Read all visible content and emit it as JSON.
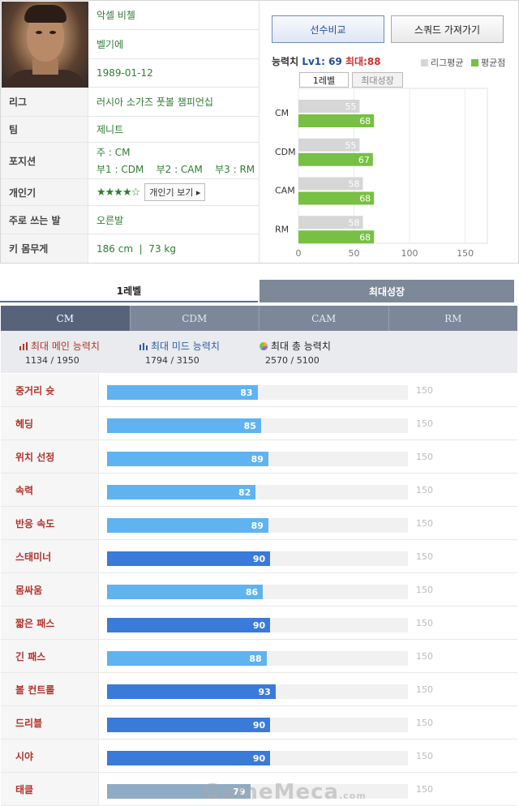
{
  "player": {
    "name": "악셀 비첼",
    "nationality": "벨기에",
    "birthdate": "1989-01-12",
    "rows": [
      {
        "label": "리그",
        "value": "러시아 소가즈 풋볼 챔피언십"
      },
      {
        "label": "팀",
        "value": "제니트"
      },
      {
        "label": "포지션",
        "value_main": "주 : CM",
        "value_sub": "부1 : CDM    부2 : CAM    부3 : RM"
      },
      {
        "label": "개인기",
        "stars": "★★★★☆",
        "button": "개인기 보기 ▸"
      },
      {
        "label": "주로 쓰는 발",
        "value": "오른발"
      },
      {
        "label": "키 몸무게",
        "value": "186 cm  |  73 kg"
      }
    ]
  },
  "buttons": {
    "compare": "선수비교",
    "squad": "스쿼드 가져가기"
  },
  "ability": {
    "label": "능력치",
    "lv1": "Lv1: 69",
    "max": "최대:88",
    "legend_league": "리그평균",
    "legend_avg": "평균점",
    "tabs": [
      "1레벨",
      "최대성장"
    ]
  },
  "colors": {
    "league": "#d6d6d6",
    "avg": "#77c043",
    "stat_light": "#5fb3f1",
    "stat_dark": "#3a7ad8",
    "stat_gray": "#8eacc4"
  },
  "chart_data": {
    "type": "bar",
    "orientation": "horizontal",
    "categories": [
      "CM",
      "CDM",
      "CAM",
      "RM"
    ],
    "series": [
      {
        "name": "리그평균",
        "values": [
          55,
          55,
          58,
          58
        ]
      },
      {
        "name": "평균점",
        "values": [
          68,
          67,
          68,
          68
        ]
      }
    ],
    "xlim": [
      0,
      170
    ],
    "xticks": [
      0,
      50,
      100,
      150
    ],
    "legend": "top-right",
    "grid": true
  },
  "growth_tabs": [
    "1레벨",
    "최대성장"
  ],
  "positions": [
    "CM",
    "CDM",
    "CAM",
    "RM"
  ],
  "summary": [
    {
      "label": "최대 메인 능력치",
      "value": "1134 / 1950",
      "icon": "bar-chart-red-icon"
    },
    {
      "label": "최대 미드 능력치",
      "value": "1794 / 3150",
      "icon": "bar-chart-blue-icon"
    },
    {
      "label": "최대 총 능력치",
      "value": "2570 / 5100",
      "icon": "pie-chart-icon"
    }
  ],
  "stats": [
    {
      "label": "중거리 슛",
      "value": 83,
      "max": 150,
      "tone": "light"
    },
    {
      "label": "헤딩",
      "value": 85,
      "max": 150,
      "tone": "light"
    },
    {
      "label": "위치 선정",
      "value": 89,
      "max": 150,
      "tone": "light"
    },
    {
      "label": "속력",
      "value": 82,
      "max": 150,
      "tone": "light"
    },
    {
      "label": "반응 속도",
      "value": 89,
      "max": 150,
      "tone": "light"
    },
    {
      "label": "스태미너",
      "value": 90,
      "max": 150,
      "tone": "dark"
    },
    {
      "label": "몸싸움",
      "value": 86,
      "max": 150,
      "tone": "light"
    },
    {
      "label": "짧은 패스",
      "value": 90,
      "max": 150,
      "tone": "dark"
    },
    {
      "label": "긴 패스",
      "value": 88,
      "max": 150,
      "tone": "light"
    },
    {
      "label": "볼 컨트롤",
      "value": 93,
      "max": 150,
      "tone": "dark"
    },
    {
      "label": "드리블",
      "value": 90,
      "max": 150,
      "tone": "dark"
    },
    {
      "label": "시야",
      "value": 90,
      "max": 150,
      "tone": "dark"
    },
    {
      "label": "태클",
      "value": 79,
      "max": 150,
      "tone": "gray"
    }
  ],
  "watermark": {
    "main": "GameMeca",
    "suffix": ".com"
  }
}
